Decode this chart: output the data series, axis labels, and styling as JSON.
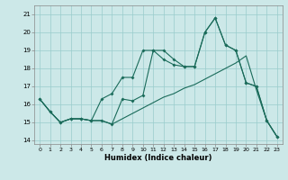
{
  "xlabel": "Humidex (Indice chaleur)",
  "xlim": [
    -0.5,
    23.5
  ],
  "ylim": [
    13.8,
    21.5
  ],
  "yticks": [
    14,
    15,
    16,
    17,
    18,
    19,
    20,
    21
  ],
  "xticks": [
    0,
    1,
    2,
    3,
    4,
    5,
    6,
    7,
    8,
    9,
    10,
    11,
    12,
    13,
    14,
    15,
    16,
    17,
    18,
    19,
    20,
    21,
    22,
    23
  ],
  "bg_color": "#cce8e8",
  "grid_color": "#99cccc",
  "line_color": "#1a6b5a",
  "line1_x": [
    0,
    1,
    2,
    3,
    4,
    5,
    6,
    7,
    8,
    9,
    10,
    11,
    12,
    13,
    14,
    15,
    16,
    17,
    18,
    19,
    20,
    21,
    22,
    23
  ],
  "line1_y": [
    16.3,
    15.6,
    15.0,
    15.2,
    15.2,
    15.1,
    15.1,
    14.9,
    15.2,
    15.5,
    15.8,
    16.1,
    16.4,
    16.6,
    16.9,
    17.1,
    17.4,
    17.7,
    18.0,
    18.3,
    18.7,
    16.8,
    15.1,
    14.2
  ],
  "line2_x": [
    0,
    1,
    2,
    3,
    4,
    5,
    6,
    7,
    8,
    9,
    10,
    11,
    12,
    13,
    14,
    15,
    16,
    17,
    18,
    19,
    20,
    21,
    22,
    23
  ],
  "line2_y": [
    16.3,
    15.6,
    15.0,
    15.2,
    15.2,
    15.1,
    16.3,
    16.6,
    17.5,
    17.5,
    19.0,
    19.0,
    18.5,
    18.2,
    18.1,
    18.1,
    20.0,
    20.8,
    19.3,
    19.0,
    17.2,
    17.0,
    15.1,
    14.2
  ],
  "line3_x": [
    0,
    1,
    2,
    3,
    4,
    5,
    6,
    7,
    8,
    9,
    10,
    11,
    12,
    13,
    14,
    15,
    16,
    17,
    18,
    19,
    20,
    21,
    22,
    23
  ],
  "line3_y": [
    16.3,
    15.6,
    15.0,
    15.2,
    15.2,
    15.1,
    15.1,
    14.9,
    16.3,
    16.2,
    16.5,
    19.0,
    19.0,
    18.5,
    18.1,
    18.1,
    20.0,
    20.8,
    19.3,
    19.0,
    17.2,
    17.0,
    15.1,
    14.2
  ]
}
